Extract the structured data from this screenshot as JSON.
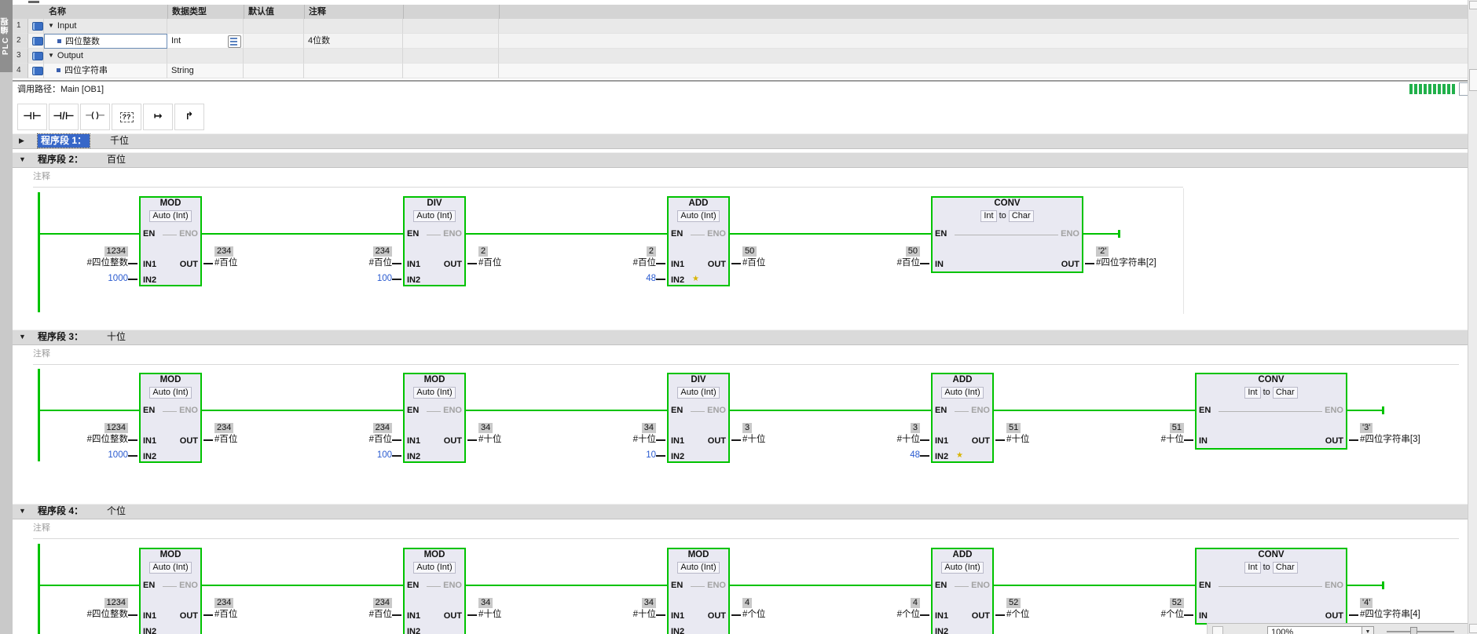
{
  "ui": {
    "sidebar_tab": "PLC 编程",
    "call_path": {
      "label": "调用路径：",
      "value": "Main [OB1]"
    },
    "zoom_control": {
      "value": "100%"
    },
    "colors": {
      "online_green": "#00c300",
      "monitor_badge": "#c9c9c9",
      "const_blue": "#2a5bd0",
      "selection_blue": "#3767c8",
      "star_yellow": "#d8b400"
    }
  },
  "var_table": {
    "headers": [
      "名称",
      "数据类型",
      "默认值",
      "注释"
    ],
    "rows": [
      {
        "num": "1",
        "kind": "group",
        "name": "Input",
        "type": "",
        "default": "",
        "comment": "",
        "selected": false,
        "type_button": false
      },
      {
        "num": "2",
        "kind": "var",
        "name": "四位整数",
        "type": "Int",
        "default": "",
        "comment": "4位数",
        "selected": true,
        "type_button": true
      },
      {
        "num": "3",
        "kind": "group",
        "name": "Output",
        "type": "",
        "default": "",
        "comment": "",
        "selected": false,
        "type_button": false
      },
      {
        "num": "4",
        "kind": "var",
        "name": "四位字符串",
        "type": "String",
        "default": "",
        "comment": "",
        "selected": false,
        "type_button": false
      }
    ]
  },
  "toolbar": {
    "buttons": [
      {
        "name": "contact-open-button",
        "glyph": "⊣⊢"
      },
      {
        "name": "contact-closed-button",
        "glyph": "⊣/⊢"
      },
      {
        "name": "coil-button",
        "glyph": "─( )─"
      },
      {
        "name": "empty-box-button",
        "glyph": "??"
      },
      {
        "name": "open-branch-button",
        "glyph": "↦"
      },
      {
        "name": "close-branch-button",
        "glyph": "↱"
      }
    ]
  },
  "networks": [
    {
      "id": 1,
      "collapsed": true,
      "selected": true,
      "title": "程序段 1：",
      "subtitle": "千位",
      "comment": "",
      "blocks": []
    },
    {
      "id": 2,
      "collapsed": false,
      "selected": false,
      "title": "程序段 2：",
      "subtitle": "百位",
      "comment": "注释",
      "blocks": [
        {
          "op": "MOD",
          "mode": "Auto (Int)",
          "in1_port": "IN1",
          "in1": {
            "value": "1234",
            "operand": "#四位整数"
          },
          "in2": {
            "const": "1000",
            "star": false
          },
          "out": {
            "value": "234",
            "operand": "#百位"
          }
        },
        {
          "op": "DIV",
          "mode": "Auto (Int)",
          "in1_port": "IN1",
          "in1": {
            "value": "234",
            "operand": "#百位"
          },
          "in2": {
            "const": "100",
            "star": false
          },
          "out": {
            "value": "2",
            "operand": "#百位"
          }
        },
        {
          "op": "ADD",
          "mode": "Auto (Int)",
          "in1_port": "IN1",
          "in1": {
            "value": "2",
            "operand": "#百位"
          },
          "in2": {
            "const": "48",
            "star": true
          },
          "out": {
            "value": "50",
            "operand": "#百位"
          }
        },
        {
          "op": "CONV",
          "mode": "Int to Char",
          "in1_port": "IN",
          "in1": {
            "value": "50",
            "operand": "#百位"
          },
          "in2": null,
          "out": {
            "value": "'2'",
            "operand": "#四位字符串[2]"
          }
        }
      ]
    },
    {
      "id": 3,
      "collapsed": false,
      "selected": false,
      "title": "程序段 3：",
      "subtitle": "十位",
      "comment": "注释",
      "blocks": [
        {
          "op": "MOD",
          "mode": "Auto (Int)",
          "in1_port": "IN1",
          "in1": {
            "value": "1234",
            "operand": "#四位整数"
          },
          "in2": {
            "const": "1000",
            "star": false
          },
          "out": {
            "value": "234",
            "operand": "#百位"
          }
        },
        {
          "op": "MOD",
          "mode": "Auto (Int)",
          "in1_port": "IN1",
          "in1": {
            "value": "234",
            "operand": "#百位"
          },
          "in2": {
            "const": "100",
            "star": false
          },
          "out": {
            "value": "34",
            "operand": "#十位"
          }
        },
        {
          "op": "DIV",
          "mode": "Auto (Int)",
          "in1_port": "IN1",
          "in1": {
            "value": "34",
            "operand": "#十位"
          },
          "in2": {
            "const": "10",
            "star": false
          },
          "out": {
            "value": "3",
            "operand": "#十位"
          }
        },
        {
          "op": "ADD",
          "mode": "Auto (Int)",
          "in1_port": "IN1",
          "in1": {
            "value": "3",
            "operand": "#十位"
          },
          "in2": {
            "const": "48",
            "star": true
          },
          "out": {
            "value": "51",
            "operand": "#十位"
          }
        },
        {
          "op": "CONV",
          "mode": "Int to Char",
          "in1_port": "IN",
          "in1": {
            "value": "51",
            "operand": "#十位"
          },
          "in2": null,
          "out": {
            "value": "'3'",
            "operand": "#四位字符串[3]"
          }
        }
      ]
    },
    {
      "id": 4,
      "collapsed": false,
      "selected": false,
      "title": "程序段 4：",
      "subtitle": "个位",
      "comment": "注释",
      "blocks": [
        {
          "op": "MOD",
          "mode": "Auto (Int)",
          "in1_port": "IN1",
          "in1": {
            "value": "1234",
            "operand": "#四位整数"
          },
          "in2": {
            "const": "",
            "star": false
          },
          "out": {
            "value": "234",
            "operand": "#百位"
          }
        },
        {
          "op": "MOD",
          "mode": "Auto (Int)",
          "in1_port": "IN1",
          "in1": {
            "value": "234",
            "operand": "#百位"
          },
          "in2": {
            "const": "",
            "star": false
          },
          "out": {
            "value": "34",
            "operand": "#十位"
          }
        },
        {
          "op": "MOD",
          "mode": "Auto (Int)",
          "in1_port": "IN1",
          "in1": {
            "value": "34",
            "operand": "#十位"
          },
          "in2": {
            "const": "",
            "star": false
          },
          "out": {
            "value": "4",
            "operand": "#个位"
          }
        },
        {
          "op": "ADD",
          "mode": "Auto (Int)",
          "in1_port": "IN1",
          "in1": {
            "value": "4",
            "operand": "#个位"
          },
          "in2": {
            "const": "",
            "star": false
          },
          "out": {
            "value": "52",
            "operand": "#个位"
          }
        },
        {
          "op": "CONV",
          "mode": "Int to Char",
          "in1_port": "IN",
          "in1": {
            "value": "52",
            "operand": "#个位"
          },
          "in2": null,
          "out": {
            "value": "'4'",
            "operand": "#四位字符串[4]"
          }
        }
      ]
    }
  ]
}
